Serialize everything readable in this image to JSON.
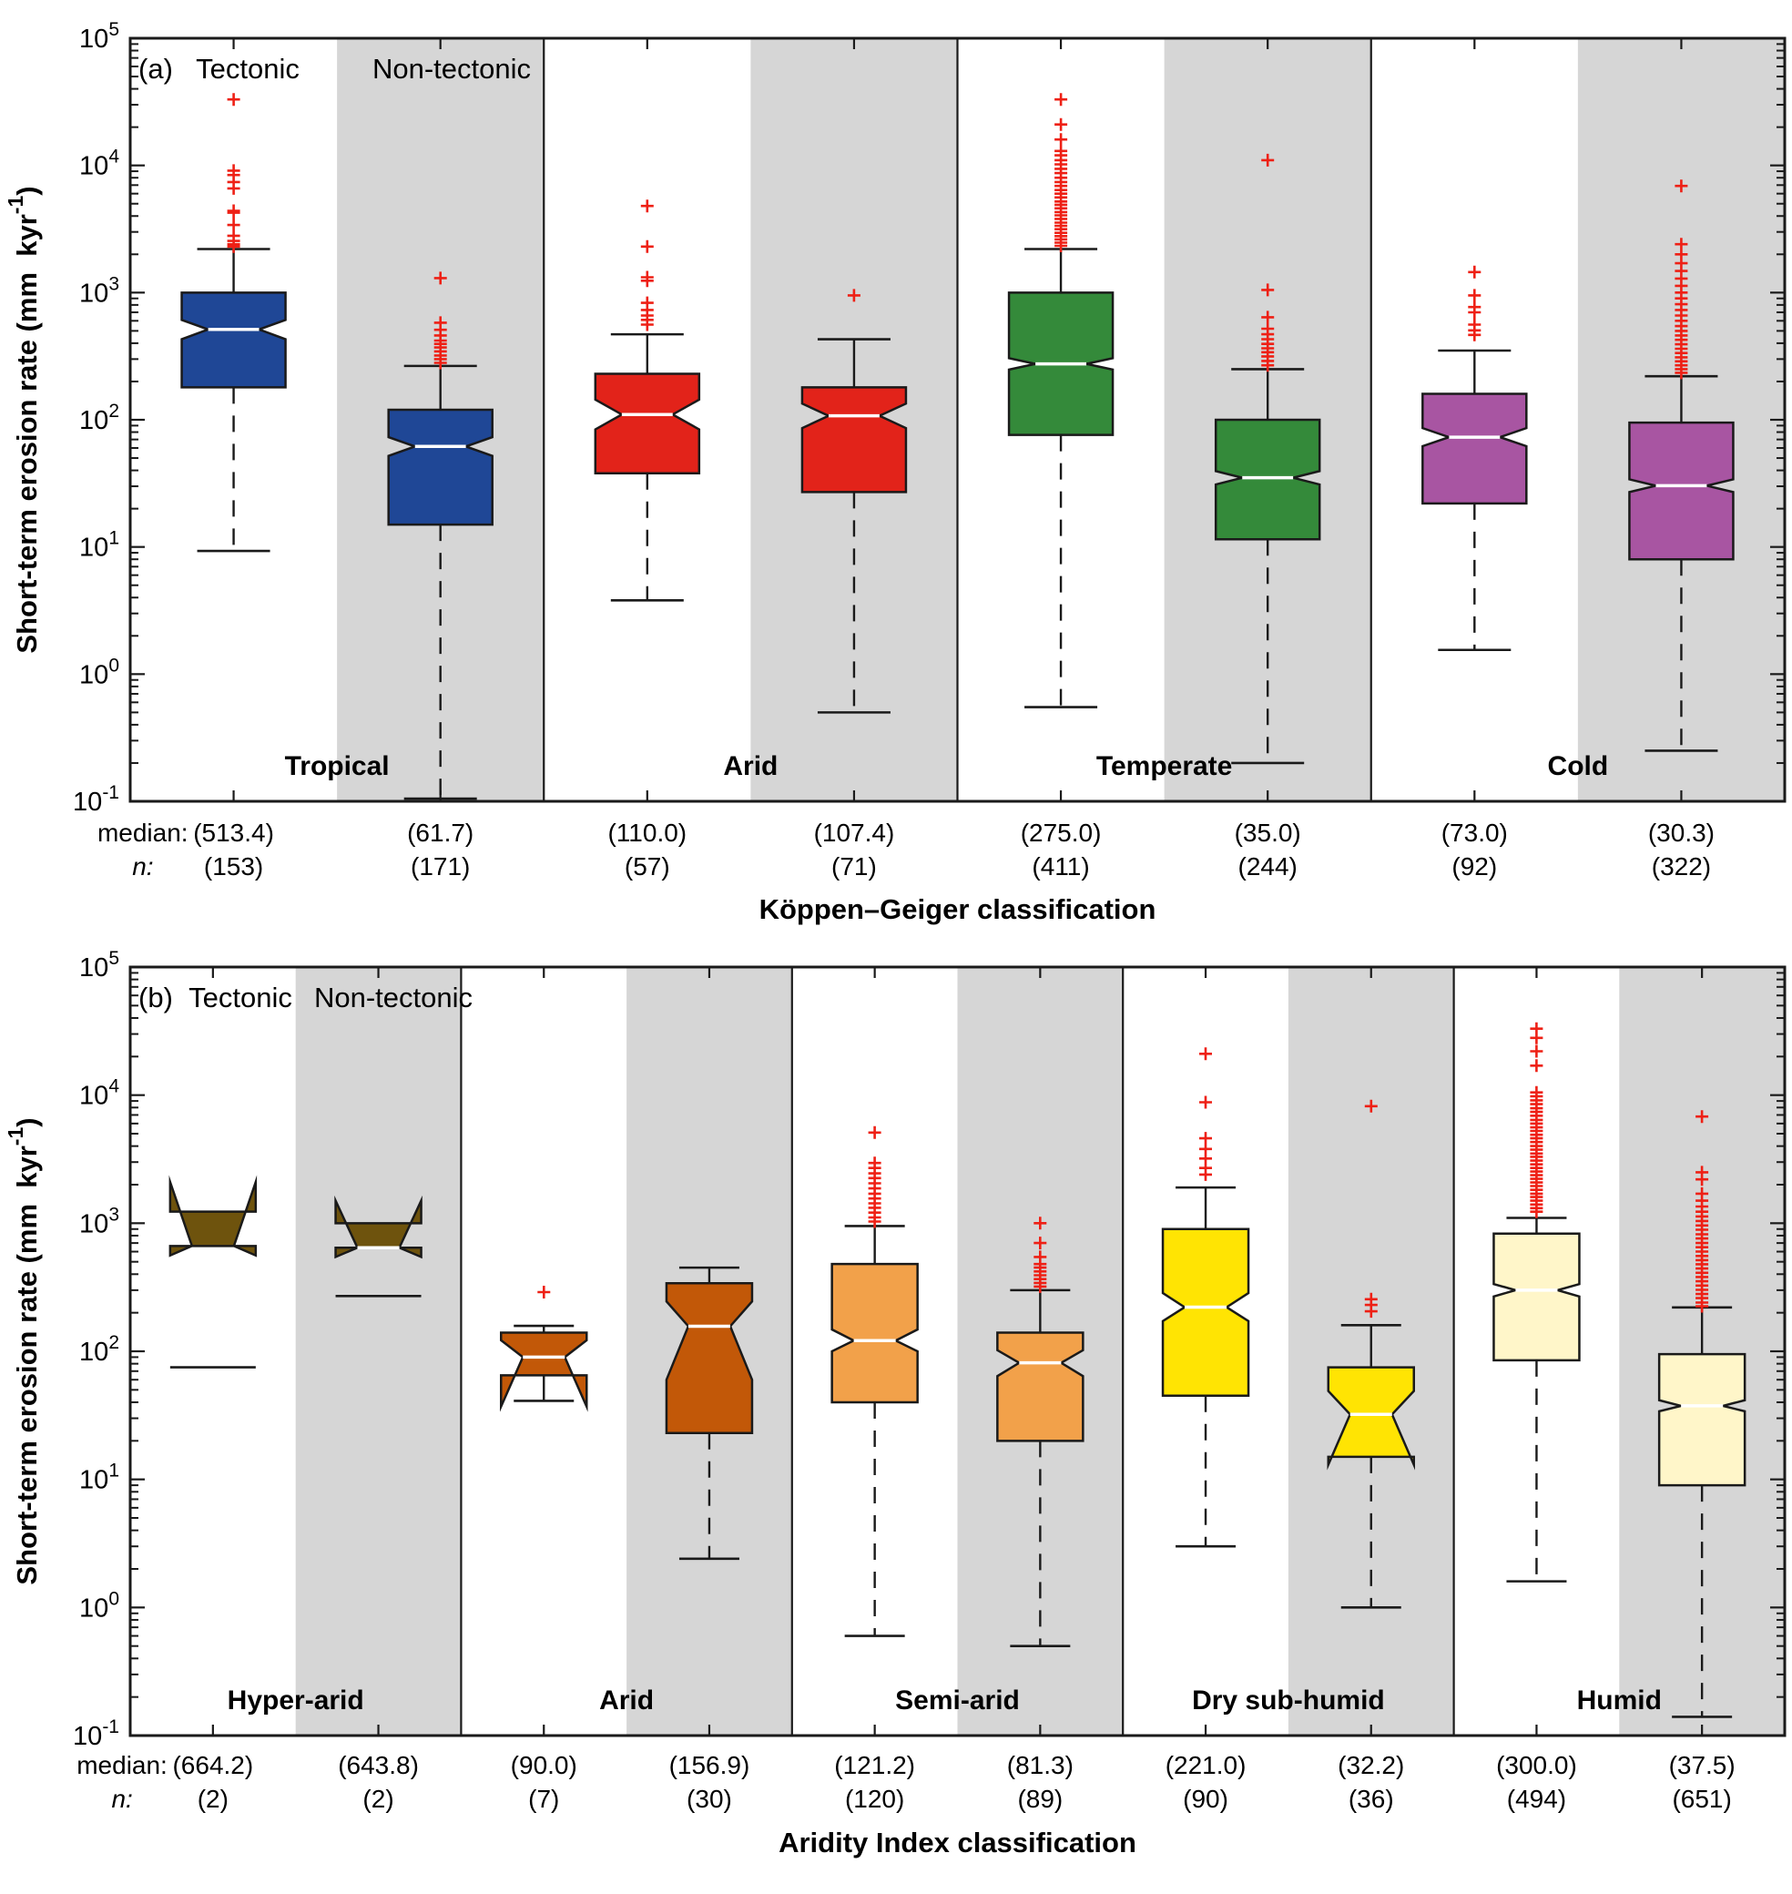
{
  "style": {
    "band_color": "#D6D6D6",
    "box_edge_color": "#1a1a1a",
    "median_line_color": "#ffffff",
    "outlier_color": "#EE2015",
    "frame_color": "#1a1a1a",
    "text_color": "#000000"
  },
  "chart_data": [
    {
      "type": "box",
      "panel_label": "(a)",
      "column_headers": [
        "Tectonic",
        "Non-tectonic"
      ],
      "xlabel": "Köppen–Geiger classification",
      "median_row_prefix": "median:",
      "n_row_prefix": "n:",
      "y_axis": {
        "label_prefix": "Short-term erosion rate (mm  kyr",
        "label_sup": "-1",
        "label_suffix": ")",
        "ylim": [
          0.1,
          100000
        ],
        "tick_exponents": [
          5,
          4,
          3,
          2,
          1,
          0,
          -1
        ]
      },
      "groups": [
        {
          "name": "Tropical",
          "color": "#1F4796",
          "boxes": [
            {
              "column": "Tectonic",
              "median": 513.4,
              "median_label": "(513.4)",
              "n_label": "(153)",
              "q1": 180,
              "q3": 1000,
              "notch_lo": 430,
              "notch_hi": 610,
              "whisker_lo": 9.3,
              "whisker_hi": 2200,
              "outliers": [
                33000,
                9100,
                8400,
                7400,
                6600,
                4400,
                4250,
                3400,
                2800,
                2550,
                2400,
                2300
              ]
            },
            {
              "column": "Non-tectonic",
              "median": 61.7,
              "median_label": "(61.7)",
              "n_label": "(171)",
              "q1": 15,
              "q3": 120,
              "notch_lo": 52,
              "notch_hi": 73,
              "whisker_lo": 0.105,
              "whisker_hi": 265,
              "outliers": [
                1300,
                580,
                510,
                460,
                420,
                395,
                370,
                345,
                320,
                300,
                280
              ]
            }
          ]
        },
        {
          "name": "Arid",
          "color": "#E2231A",
          "boxes": [
            {
              "column": "Tectonic",
              "median": 110.0,
              "median_label": "(110.0)",
              "n_label": "(57)",
              "q1": 38,
              "q3": 230,
              "notch_lo": 84,
              "notch_hi": 144,
              "whisker_lo": 3.8,
              "whisker_hi": 470,
              "outliers": [
                4800,
                2300,
                1320,
                1240,
                830,
                730,
                660,
                610,
                560
              ]
            },
            {
              "column": "Non-tectonic",
              "median": 107.4,
              "median_label": "(107.4)",
              "n_label": "(71)",
              "q1": 27,
              "q3": 180,
              "notch_lo": 86,
              "notch_hi": 134,
              "whisker_lo": 0.5,
              "whisker_hi": 430,
              "outliers": [
                950
              ]
            }
          ]
        },
        {
          "name": "Temperate",
          "color": "#348A3A",
          "boxes": [
            {
              "column": "Tectonic",
              "median": 275.0,
              "median_label": "(275.0)",
              "n_label": "(411)",
              "q1": 76,
              "q3": 1000,
              "notch_lo": 248,
              "notch_hi": 305,
              "whisker_lo": 0.55,
              "whisker_hi": 2200,
              "outliers": [
                33000,
                21000,
                16000,
                13000,
                12000,
                11000,
                10200,
                9400,
                8700,
                8000,
                7400,
                6900,
                6400,
                6000,
                5600,
                5200,
                4900,
                4600,
                4300,
                4050,
                3800,
                3550,
                3350,
                3150,
                2950,
                2780,
                2620,
                2470,
                2330
              ]
            },
            {
              "column": "Non-tectonic",
              "median": 35.0,
              "median_label": "(35.0)",
              "n_label": "(244)",
              "q1": 11.5,
              "q3": 100,
              "notch_lo": 31,
              "notch_hi": 39.5,
              "whisker_lo": 0.2,
              "whisker_hi": 250,
              "outliers": [
                11000,
                1050,
                640,
                520,
                470,
                430,
                395,
                365,
                340,
                315,
                290,
                268
              ]
            }
          ]
        },
        {
          "name": "Cold",
          "color": "#A855A2",
          "boxes": [
            {
              "column": "Tectonic",
              "median": 73.0,
              "median_label": "(73.0)",
              "n_label": "(92)",
              "q1": 22,
              "q3": 160,
              "notch_lo": 62,
              "notch_hi": 86,
              "whisker_lo": 1.55,
              "whisker_hi": 350,
              "outliers": [
                1450,
                950,
                770,
                700,
                560,
                505,
                465
              ]
            },
            {
              "column": "Non-tectonic",
              "median": 30.3,
              "median_label": "(30.3)",
              "n_label": "(322)",
              "q1": 8,
              "q3": 95,
              "notch_lo": 27,
              "notch_hi": 34,
              "whisker_lo": 0.25,
              "whisker_hi": 220,
              "outliers": [
                6900,
                2400,
                2000,
                1700,
                1480,
                1290,
                1130,
                1000,
                900,
                810,
                730,
                660,
                600,
                545,
                500,
                460,
                425,
                392,
                362,
                335,
                310,
                288,
                268,
                250,
                234
              ]
            }
          ]
        }
      ]
    },
    {
      "type": "box",
      "panel_label": "(b)",
      "column_headers": [
        "Tectonic",
        "Non-tectonic"
      ],
      "xlabel": "Aridity Index classification",
      "median_row_prefix": "median:",
      "n_row_prefix": "n:",
      "y_axis": {
        "label_prefix": "Short-term erosion rate (mm  kyr",
        "label_sup": "-1",
        "label_suffix": ")",
        "ylim": [
          0.1,
          100000
        ],
        "tick_exponents": [
          5,
          4,
          3,
          2,
          1,
          0,
          -1
        ]
      },
      "groups": [
        {
          "name": "Hyper-arid",
          "color": "#6E530D",
          "boxes": [
            {
              "column": "Tectonic",
              "median": 664.2,
              "median_label": "(664.2)",
              "n_label": "(2)",
              "q1": 664.2,
              "q3": 1230,
              "notch_lo": 560,
              "notch_hi": 2100,
              "extra_cap_lines": [
                75
              ],
              "draw_median_line": false,
              "outliers": []
            },
            {
              "column": "Non-tectonic",
              "median": 643.8,
              "median_label": "(643.8)",
              "n_label": "(2)",
              "q1": 643.8,
              "q3": 1000,
              "notch_lo": 545,
              "notch_hi": 1500,
              "extra_cap_lines": [
                270
              ],
              "outliers": []
            }
          ]
        },
        {
          "name": "Arid",
          "color": "#C25808",
          "boxes": [
            {
              "column": "Tectonic",
              "median": 90.0,
              "median_label": "(90.0)",
              "n_label": "(7)",
              "q1": 65,
              "q3": 140,
              "notch_lo": 37,
              "notch_hi": 122,
              "whisker_lo": 41,
              "whisker_hi": 158,
              "outliers": [
                290
              ]
            },
            {
              "column": "Non-tectonic",
              "median": 156.9,
              "median_label": "(156.9)",
              "n_label": "(30)",
              "q1": 23,
              "q3": 340,
              "notch_lo": 60,
              "notch_hi": 245,
              "whisker_lo": 2.4,
              "whisker_hi": 450,
              "outliers": []
            }
          ]
        },
        {
          "name": "Semi-arid",
          "color": "#F2A14A",
          "boxes": [
            {
              "column": "Tectonic",
              "median": 121.2,
              "median_label": "(121.2)",
              "n_label": "(120)",
              "q1": 40,
              "q3": 480,
              "notch_lo": 100,
              "notch_hi": 148,
              "whisker_lo": 0.6,
              "whisker_hi": 950,
              "outliers": [
                5100,
                2950,
                2700,
                2450,
                2250,
                2050,
                1870,
                1700,
                1560,
                1430,
                1320,
                1210,
                1110,
                1030
              ]
            },
            {
              "column": "Non-tectonic",
              "median": 81.3,
              "median_label": "(81.3)",
              "n_label": "(89)",
              "q1": 20,
              "q3": 140,
              "notch_lo": 64,
              "notch_hi": 102,
              "whisker_lo": 0.5,
              "whisker_hi": 300,
              "outliers": [
                1000,
                700,
                545,
                480,
                450,
                420,
                392,
                366,
                342,
                320
              ]
            }
          ]
        },
        {
          "name": "Dry sub-humid",
          "color": "#FFE403",
          "boxes": [
            {
              "column": "Tectonic",
              "median": 221.0,
              "median_label": "(221.0)",
              "n_label": "(90)",
              "q1": 45,
              "q3": 900,
              "notch_lo": 172,
              "notch_hi": 285,
              "whisker_lo": 3,
              "whisker_hi": 1900,
              "outliers": [
                21000,
                8800,
                4600,
                3800,
                3200,
                2700,
                2400
              ]
            },
            {
              "column": "Non-tectonic",
              "median": 32.2,
              "median_label": "(32.2)",
              "n_label": "(36)",
              "q1": 15,
              "q3": 75,
              "notch_lo": 13,
              "notch_hi": 49,
              "whisker_lo": 1.0,
              "whisker_hi": 160,
              "outliers": [
                8200,
                255,
                230,
                205
              ]
            }
          ]
        },
        {
          "name": "Humid",
          "color": "#FFF6C9",
          "boxes": [
            {
              "column": "Tectonic",
              "median": 300.0,
              "median_label": "(300.0)",
              "n_label": "(494)",
              "q1": 85,
              "q3": 830,
              "notch_lo": 268,
              "notch_hi": 335,
              "whisker_lo": 1.6,
              "whisker_hi": 1100,
              "outliers": [
                33000,
                28000,
                22000,
                17000,
                10500,
                9800,
                9100,
                8500,
                7900,
                7400,
                6900,
                6400,
                6000,
                5600,
                5250,
                4900,
                4600,
                4300,
                4000,
                3750,
                3500,
                3300,
                3080,
                2880,
                2700,
                2530,
                2370,
                2220,
                2080,
                1950,
                1820,
                1700,
                1600,
                1500,
                1400,
                1310,
                1230
              ]
            },
            {
              "column": "Non-tectonic",
              "median": 37.5,
              "median_label": "(37.5)",
              "n_label": "(651)",
              "q1": 9,
              "q3": 95,
              "notch_lo": 34,
              "notch_hi": 41.5,
              "whisker_lo": 0.14,
              "whisker_hi": 220,
              "outliers": [
                6800,
                2500,
                2200,
                1700,
                1500,
                1350,
                1230,
                1130,
                1040,
                960,
                890,
                820,
                760,
                700,
                650,
                600,
                555,
                515,
                478,
                443,
                410,
                380,
                352,
                326,
                302,
                280,
                260,
                240,
                225
              ]
            }
          ]
        }
      ]
    }
  ]
}
